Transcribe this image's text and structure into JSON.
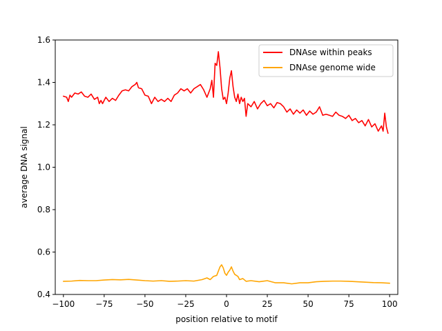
{
  "chart_data": {
    "type": "line",
    "title": "",
    "xlabel": "position relative to motif",
    "ylabel": "average DNA signal",
    "xlim": [
      -105,
      105
    ],
    "ylim": [
      0.4,
      1.6
    ],
    "xticks": [
      -100,
      -75,
      -50,
      -25,
      0,
      25,
      50,
      75,
      100
    ],
    "xtick_labels": [
      "−100",
      "−75",
      "−50",
      "−25",
      "0",
      "25",
      "50",
      "75",
      "100"
    ],
    "yticks": [
      0.4,
      0.6,
      0.8,
      1.0,
      1.2,
      1.4,
      1.6
    ],
    "ytick_labels": [
      "0.4",
      "0.6",
      "0.8",
      "1.0",
      "1.2",
      "1.4",
      "1.6"
    ],
    "grid": false,
    "legend_position": "top-right",
    "series": [
      {
        "name": "DNAse within peaks",
        "color": "#ff0000",
        "x": [
          -100,
          -98,
          -97,
          -96,
          -95,
          -93,
          -91,
          -89,
          -87,
          -85,
          -83,
          -81,
          -79,
          -78,
          -77,
          -76,
          -74,
          -72,
          -70,
          -68,
          -66,
          -64,
          -62,
          -60,
          -58,
          -56,
          -55,
          -54,
          -52,
          -50,
          -48,
          -46,
          -44,
          -42,
          -40,
          -38,
          -36,
          -34,
          -32,
          -30,
          -28,
          -26,
          -24,
          -22,
          -20,
          -18,
          -16,
          -14,
          -12,
          -10,
          -9,
          -8,
          -7,
          -6,
          -5,
          -4,
          -3,
          -2,
          -1,
          0,
          1,
          2,
          3,
          4,
          5,
          6,
          7,
          8,
          9,
          10,
          11,
          12,
          13,
          15,
          17,
          19,
          21,
          23,
          25,
          27,
          29,
          31,
          33,
          35,
          37,
          39,
          41,
          43,
          45,
          47,
          49,
          51,
          53,
          55,
          57,
          59,
          61,
          63,
          65,
          67,
          69,
          71,
          73,
          75,
          77,
          79,
          81,
          83,
          85,
          87,
          89,
          91,
          93,
          95,
          96,
          97,
          98,
          99
        ],
        "values": [
          1.335,
          1.33,
          1.31,
          1.34,
          1.33,
          1.35,
          1.345,
          1.355,
          1.335,
          1.33,
          1.345,
          1.32,
          1.33,
          1.3,
          1.315,
          1.3,
          1.33,
          1.31,
          1.325,
          1.315,
          1.34,
          1.36,
          1.365,
          1.36,
          1.38,
          1.39,
          1.4,
          1.375,
          1.37,
          1.34,
          1.335,
          1.3,
          1.33,
          1.31,
          1.32,
          1.31,
          1.325,
          1.31,
          1.34,
          1.35,
          1.37,
          1.36,
          1.37,
          1.35,
          1.37,
          1.38,
          1.39,
          1.365,
          1.33,
          1.37,
          1.41,
          1.33,
          1.49,
          1.48,
          1.545,
          1.47,
          1.37,
          1.32,
          1.33,
          1.3,
          1.35,
          1.42,
          1.455,
          1.38,
          1.33,
          1.31,
          1.345,
          1.3,
          1.33,
          1.31,
          1.325,
          1.24,
          1.3,
          1.285,
          1.31,
          1.275,
          1.3,
          1.315,
          1.29,
          1.3,
          1.28,
          1.305,
          1.3,
          1.285,
          1.26,
          1.275,
          1.25,
          1.27,
          1.255,
          1.27,
          1.245,
          1.265,
          1.25,
          1.26,
          1.285,
          1.245,
          1.25,
          1.245,
          1.24,
          1.26,
          1.245,
          1.24,
          1.23,
          1.245,
          1.22,
          1.23,
          1.21,
          1.22,
          1.195,
          1.225,
          1.19,
          1.205,
          1.17,
          1.195,
          1.17,
          1.255,
          1.19,
          1.16
        ]
      },
      {
        "name": "DNAse genome wide",
        "color": "#ffa500",
        "x": [
          -100,
          -95,
          -90,
          -85,
          -80,
          -75,
          -70,
          -65,
          -60,
          -55,
          -50,
          -45,
          -40,
          -35,
          -30,
          -25,
          -20,
          -15,
          -12,
          -10,
          -8,
          -6,
          -5,
          -4,
          -3,
          -2,
          -1,
          0,
          1,
          2,
          3,
          4,
          5,
          6,
          7,
          8,
          10,
          12,
          15,
          20,
          25,
          30,
          35,
          40,
          45,
          50,
          55,
          60,
          65,
          70,
          75,
          80,
          85,
          90,
          95,
          100
        ],
        "values": [
          0.462,
          0.463,
          0.466,
          0.465,
          0.465,
          0.468,
          0.47,
          0.469,
          0.471,
          0.468,
          0.465,
          0.463,
          0.465,
          0.462,
          0.463,
          0.465,
          0.463,
          0.47,
          0.478,
          0.47,
          0.485,
          0.49,
          0.51,
          0.53,
          0.54,
          0.525,
          0.5,
          0.49,
          0.505,
          0.515,
          0.53,
          0.51,
          0.495,
          0.49,
          0.485,
          0.47,
          0.475,
          0.462,
          0.465,
          0.46,
          0.465,
          0.455,
          0.455,
          0.45,
          0.455,
          0.455,
          0.46,
          0.462,
          0.463,
          0.463,
          0.462,
          0.46,
          0.458,
          0.456,
          0.455,
          0.453
        ]
      }
    ]
  }
}
